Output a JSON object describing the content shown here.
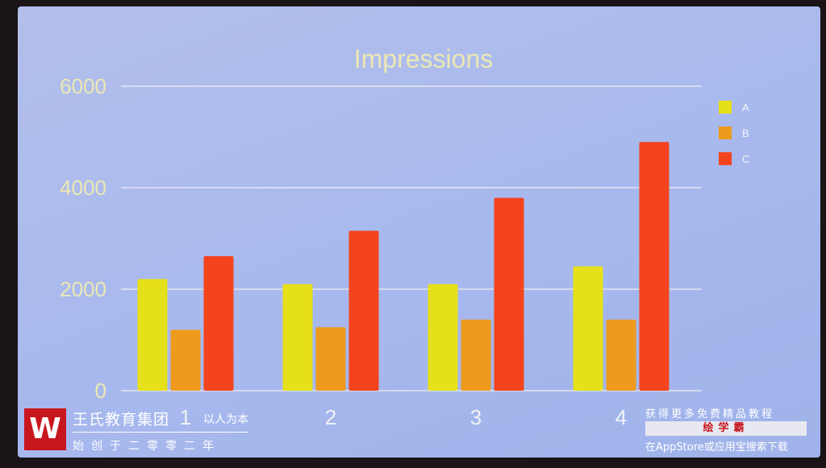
{
  "chart_data": {
    "type": "bar",
    "title": "Impressions",
    "categories": [
      "1",
      "2",
      "3",
      "4"
    ],
    "series": [
      {
        "name": "A",
        "color": "#e6e01a",
        "values": [
          2200,
          2100,
          2100,
          2450
        ]
      },
      {
        "name": "B",
        "color": "#ee9a1c",
        "values": [
          1200,
          1250,
          1400,
          1400
        ]
      },
      {
        "name": "C",
        "color": "#f4441e",
        "values": [
          2650,
          3150,
          3800,
          4900
        ]
      }
    ],
    "yticks": [
      "0",
      "2000",
      "4000",
      "6000"
    ],
    "ylim": [
      0,
      6000
    ],
    "grid": true,
    "legend": "top-right",
    "xlabel": "",
    "ylabel": ""
  },
  "watermark": {
    "logo_letter": "W",
    "org_name": "王氏教育集团",
    "motto": "以人为本",
    "since": "始创于二零零二年",
    "promo_line1": "获得更多免费精品教程",
    "promo_brand": "绘学霸",
    "promo_line3": "在AppStore或应用宝搜索下载"
  }
}
